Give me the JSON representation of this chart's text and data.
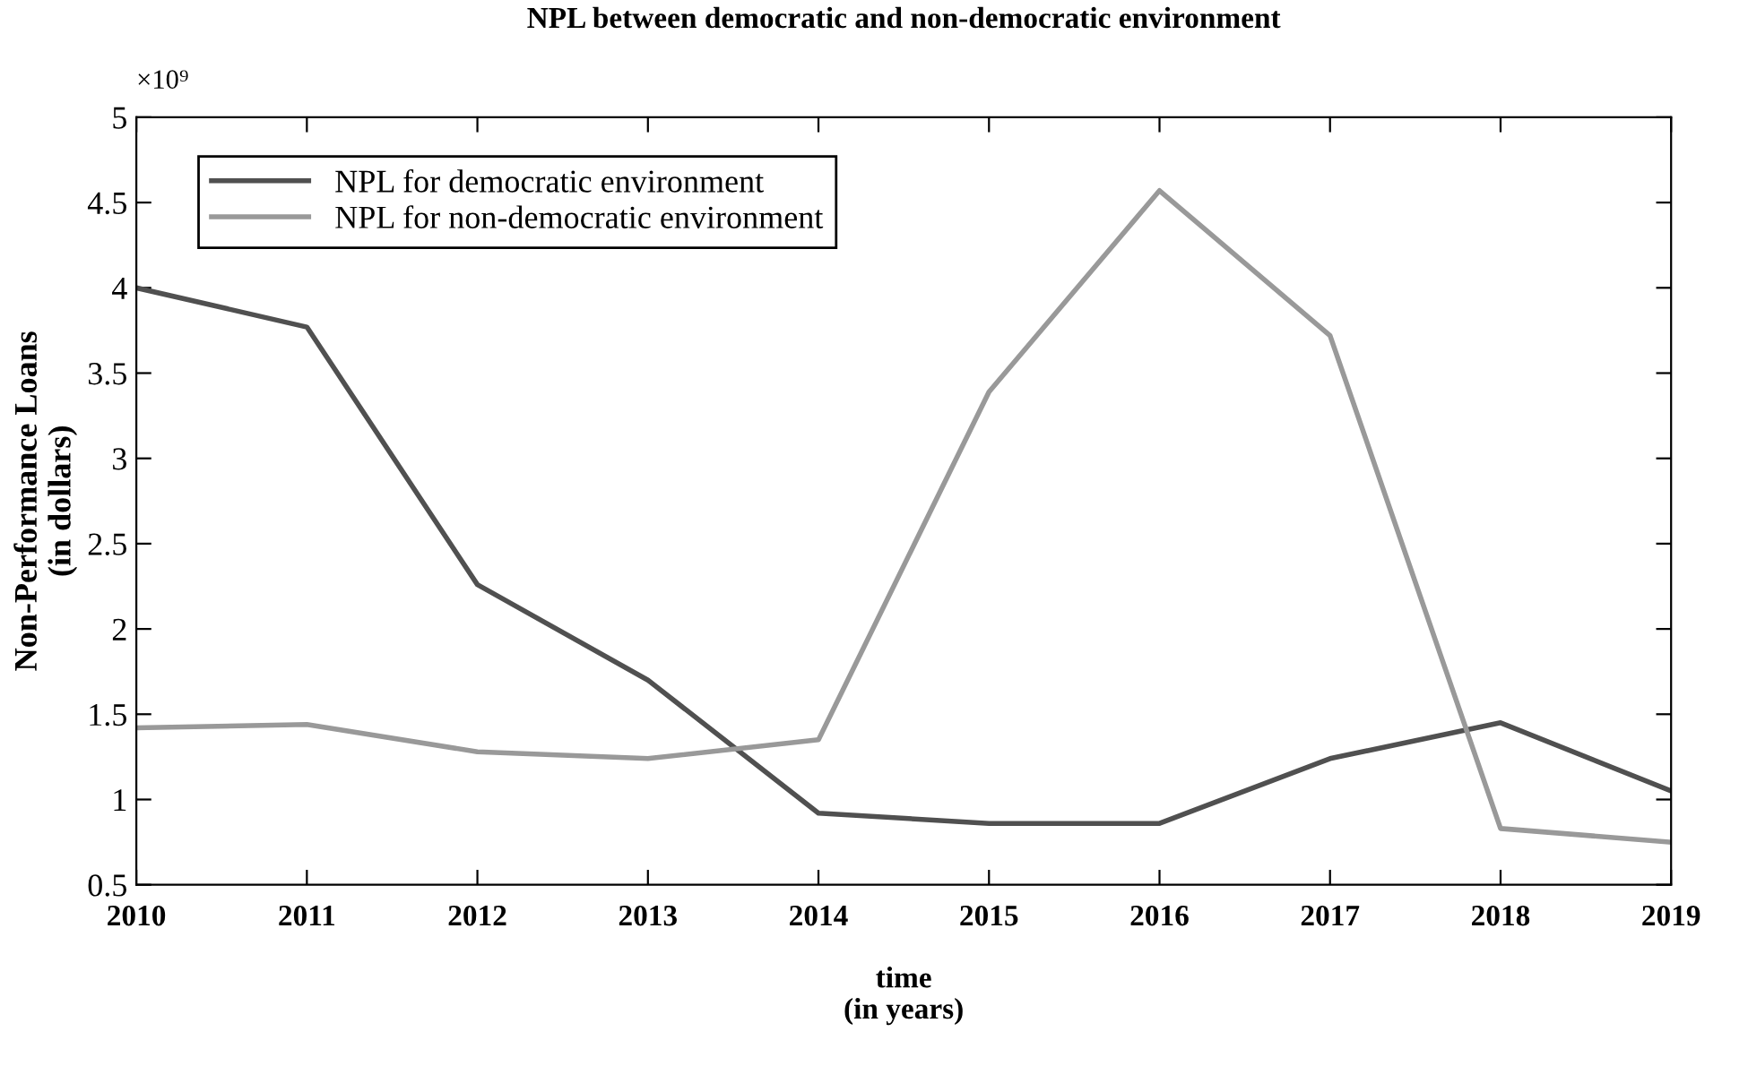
{
  "chart_data": {
    "type": "line",
    "title": "NPL between democratic and non-democratic environment",
    "xlabel": "time\n(in years)",
    "ylabel": "Non-Performance Loans\n(in dollars)",
    "x": [
      2010,
      2011,
      2012,
      2013,
      2014,
      2015,
      2016,
      2017,
      2018,
      2019
    ],
    "series": [
      {
        "name": "NPL for democratic environment",
        "color": "#505050",
        "values": [
          4.0,
          3.77,
          2.26,
          1.7,
          0.92,
          0.86,
          0.86,
          1.24,
          1.45,
          1.05
        ]
      },
      {
        "name": "NPL for non-democratic environment",
        "color": "#999999",
        "values": [
          1.42,
          1.44,
          1.28,
          1.24,
          1.35,
          3.39,
          4.57,
          3.72,
          0.83,
          0.75
        ]
      }
    ],
    "xlim": [
      2010,
      2019
    ],
    "xticks": [
      2010,
      2011,
      2012,
      2013,
      2014,
      2015,
      2016,
      2017,
      2018,
      2019
    ],
    "ylim": [
      0.5,
      5
    ],
    "yticks": [
      0.5,
      1,
      1.5,
      2,
      2.5,
      3,
      3.5,
      4,
      4.5,
      5
    ],
    "annotations": [
      "×10⁹"
    ],
    "legend": "top left",
    "grid": false,
    "marker": "none",
    "line_style": "solid"
  }
}
